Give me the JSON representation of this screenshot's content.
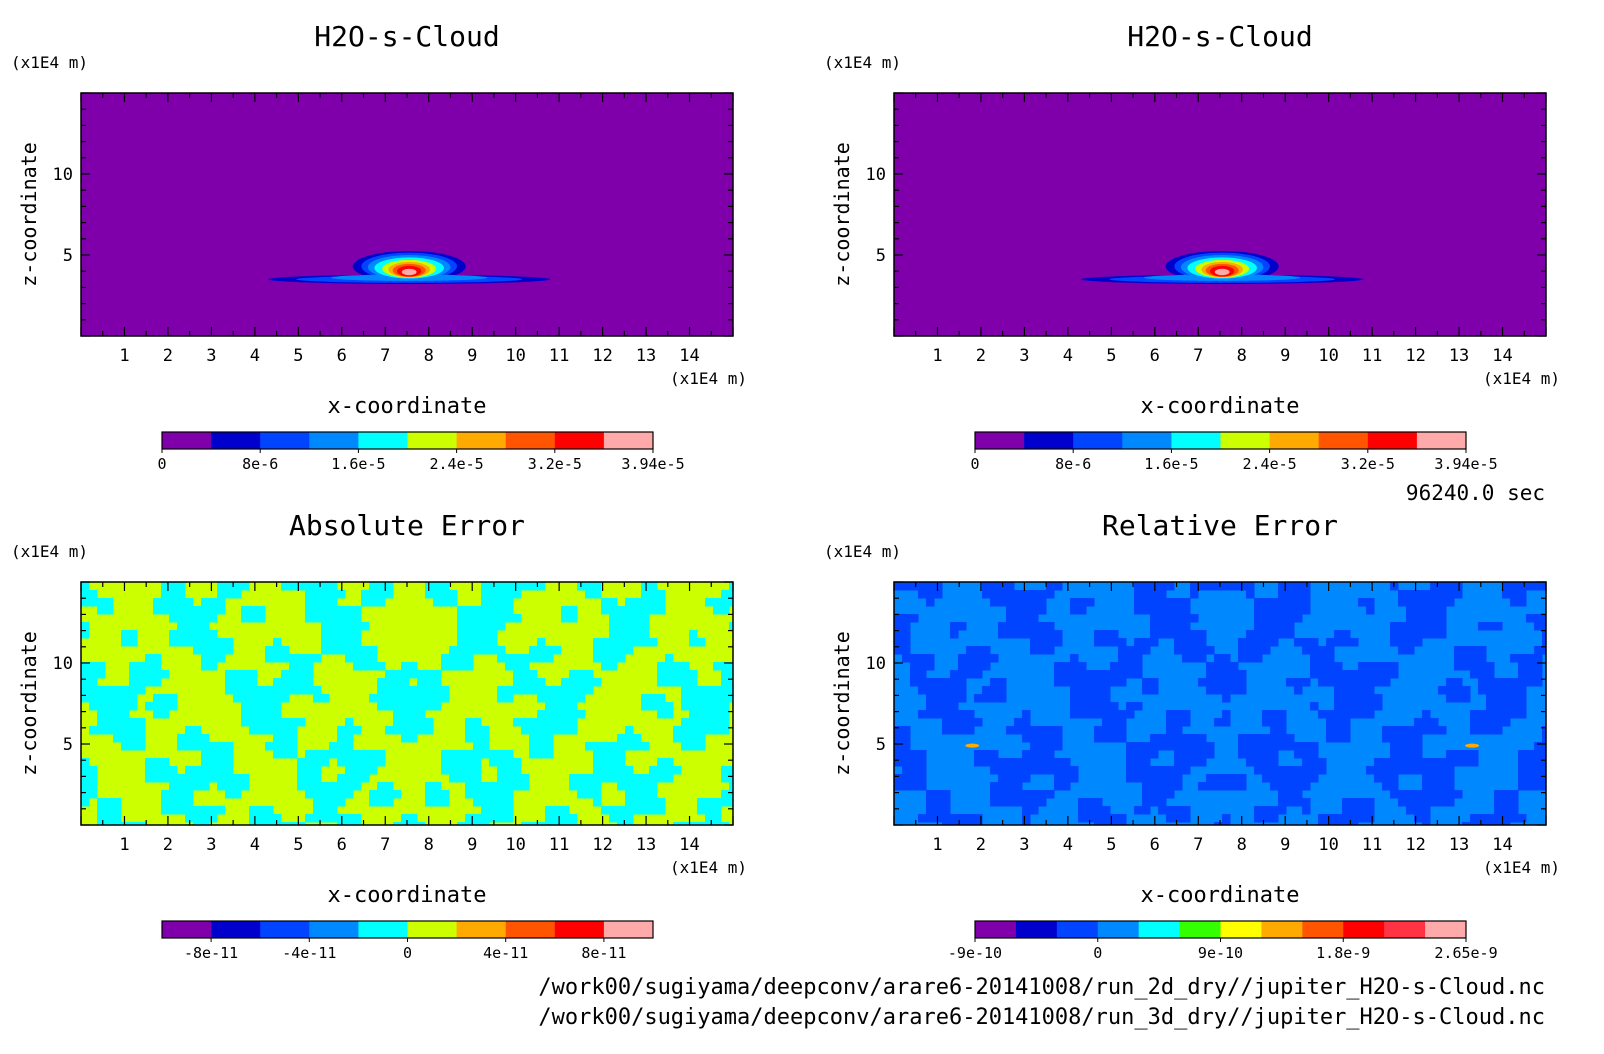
{
  "time_label": "96240.0 sec",
  "file_paths": [
    "/work00/sugiyama/deepconv/arare6-20141008/run_2d_dry//jupiter_H2O-s-Cloud.nc",
    "/work00/sugiyama/deepconv/arare6-20141008/run_3d_dry//jupiter_H2O-s-Cloud.nc"
  ],
  "chart_data": [
    {
      "type": "heatmap",
      "title": "H2O-s-Cloud",
      "xlabel": "x-coordinate",
      "ylabel": "z-coordinate",
      "x_unit": "(x1E4 m)",
      "y_unit": "(x1E4 m)",
      "xlim": [
        0,
        15
      ],
      "ylim": [
        0,
        15
      ],
      "x_ticks": [
        1,
        2,
        3,
        4,
        5,
        6,
        7,
        8,
        9,
        10,
        11,
        12,
        13,
        14
      ],
      "y_ticks": [
        5,
        10
      ],
      "field": "cloud",
      "background_color": "#7f00aa",
      "colorbar": {
        "colors": [
          "#7f00aa",
          "#0000cc",
          "#0044ff",
          "#0088ff",
          "#00ffff",
          "#ccff00",
          "#ffaa00",
          "#ff5500",
          "#ff0000",
          "#ffaaaa"
        ],
        "labels": [
          "0",
          "8e-6",
          "1.6e-5",
          "2.4e-5",
          "3.2e-5",
          "3.94e-5"
        ]
      }
    },
    {
      "type": "heatmap",
      "title": "H2O-s-Cloud",
      "xlabel": "x-coordinate",
      "ylabel": "z-coordinate",
      "x_unit": "(x1E4 m)",
      "y_unit": "(x1E4 m)",
      "xlim": [
        0,
        15
      ],
      "ylim": [
        0,
        15
      ],
      "x_ticks": [
        1,
        2,
        3,
        4,
        5,
        6,
        7,
        8,
        9,
        10,
        11,
        12,
        13,
        14
      ],
      "y_ticks": [
        5,
        10
      ],
      "field": "cloud",
      "background_color": "#7f00aa",
      "colorbar": {
        "colors": [
          "#7f00aa",
          "#0000cc",
          "#0044ff",
          "#0088ff",
          "#00ffff",
          "#ccff00",
          "#ffaa00",
          "#ff5500",
          "#ff0000",
          "#ffaaaa"
        ],
        "labels": [
          "0",
          "8e-6",
          "1.6e-5",
          "2.4e-5",
          "3.2e-5",
          "3.94e-5"
        ]
      }
    },
    {
      "type": "heatmap",
      "title": "Absolute Error",
      "xlabel": "x-coordinate",
      "ylabel": "z-coordinate",
      "x_unit": "(x1E4 m)",
      "y_unit": "(x1E4 m)",
      "xlim": [
        0,
        15
      ],
      "ylim": [
        0,
        15
      ],
      "x_ticks": [
        1,
        2,
        3,
        4,
        5,
        6,
        7,
        8,
        9,
        10,
        11,
        12,
        13,
        14
      ],
      "y_ticks": [
        5,
        10
      ],
      "field": "noise",
      "background_color": "#ccff00",
      "pattern_color": "#00ffff",
      "colorbar": {
        "colors": [
          "#7f00aa",
          "#0000cc",
          "#0044ff",
          "#0088ff",
          "#00ffff",
          "#ccff00",
          "#ffaa00",
          "#ff5500",
          "#ff0000",
          "#ffaaaa"
        ],
        "labels": [
          "-8e-11",
          "-4e-11",
          "0",
          "4e-11",
          "8e-11"
        ]
      }
    },
    {
      "type": "heatmap",
      "title": "Relative Error",
      "xlabel": "x-coordinate",
      "ylabel": "z-coordinate",
      "x_unit": "(x1E4 m)",
      "y_unit": "(x1E4 m)",
      "xlim": [
        0,
        15
      ],
      "ylim": [
        0,
        15
      ],
      "x_ticks": [
        1,
        2,
        3,
        4,
        5,
        6,
        7,
        8,
        9,
        10,
        11,
        12,
        13,
        14
      ],
      "y_ticks": [
        5,
        10
      ],
      "field": "noise",
      "background_color": "#0088ff",
      "pattern_color": "#0044ff",
      "colorbar": {
        "colors": [
          "#7f00aa",
          "#0000cc",
          "#0044ff",
          "#0088ff",
          "#00ffff",
          "#33ff00",
          "#ffff00",
          "#ffaa00",
          "#ff5500",
          "#ff0000",
          "#ff3344",
          "#ffaaaa"
        ],
        "labels": [
          "-9e-10",
          "0",
          "9e-10",
          "1.8e-9",
          "2.65e-9"
        ]
      }
    }
  ]
}
